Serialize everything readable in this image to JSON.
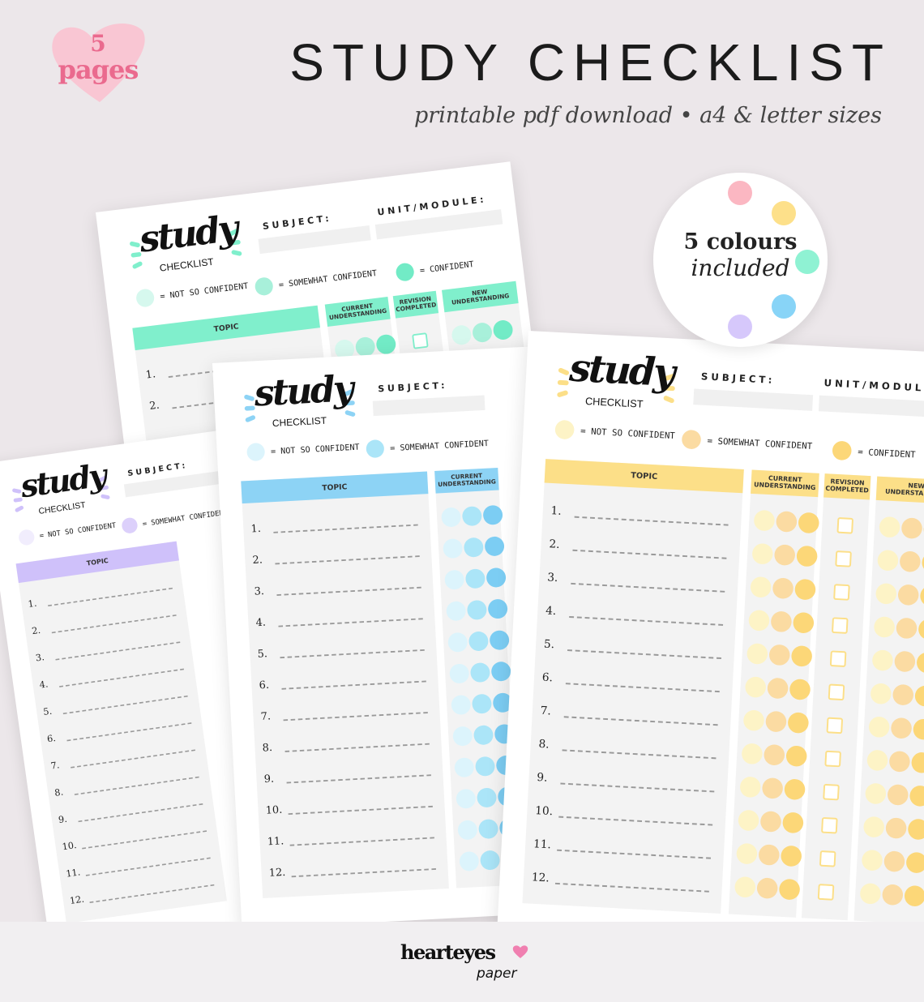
{
  "header": {
    "title": "STUDY CHECKLIST",
    "subtitle": "printable pdf download • a4 & letter sizes"
  },
  "badge": {
    "number": "5",
    "label": "pages",
    "color": "#f9c6d3",
    "text_color": "#ea6a8e"
  },
  "colours_badge": {
    "line1": "5 colours",
    "line2": "included",
    "dots": [
      "#fbb7c2",
      "#fde08a",
      "#8ff2d3",
      "#88d4f7",
      "#d6c8fb"
    ]
  },
  "sheet_text": {
    "logo": "study",
    "logo_sub": "CHECKLIST",
    "subject": "SUBJECT:",
    "unit": "UNIT/MODULE:",
    "legend": [
      "= NOT SO CONFIDENT",
      "= SOMEWHAT CONFIDENT",
      "= CONFIDENT"
    ],
    "columns": [
      "TOPIC",
      "CURRENT UNDERSTANDING",
      "REVISION COMPLETED",
      "NEW UNDERSTANDING"
    ],
    "rows": [
      "1.",
      "2.",
      "3.",
      "4.",
      "5.",
      "6.",
      "7.",
      "8.",
      "9.",
      "10.",
      "11.",
      "12."
    ]
  },
  "sheets": [
    {
      "name": "green",
      "colors": [
        "#d6f8ee",
        "#a8f0da",
        "#72ebc6"
      ],
      "header": "#80efcc"
    },
    {
      "name": "purple",
      "colors": [
        "#f1edfd",
        "#dcd0fb",
        "#c5b3f7"
      ],
      "header": "#cfc1fa"
    },
    {
      "name": "blue",
      "colors": [
        "#dcf4fc",
        "#abe5f8",
        "#7ccdf3"
      ],
      "header": "#8dd3f5"
    },
    {
      "name": "yellow",
      "colors": [
        "#fdf3c6",
        "#fbdba2",
        "#fcd778"
      ],
      "header": "#fcdf88"
    }
  ],
  "footer": {
    "brand": "hearteyes",
    "brand_sub": "paper",
    "heart_color": "#f07fb0"
  }
}
